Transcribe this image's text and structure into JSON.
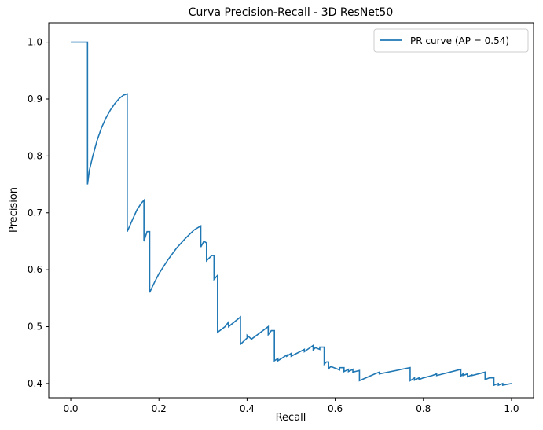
{
  "chart_data": {
    "type": "line",
    "title": "Curva Precision-Recall - 3D ResNet50",
    "xlabel": "Recall",
    "ylabel": "Precision",
    "xlim": [
      -0.05,
      1.05
    ],
    "ylim": [
      0.375,
      1.034
    ],
    "xticks": [
      0.0,
      0.2,
      0.4,
      0.6,
      0.8,
      1.0
    ],
    "xtick_labels": [
      "0.0",
      "0.2",
      "0.4",
      "0.6",
      "0.8",
      "1.0"
    ],
    "yticks": [
      0.4,
      0.5,
      0.6,
      0.7,
      0.8,
      0.9,
      1.0
    ],
    "ytick_labels": [
      "0.4",
      "0.5",
      "0.6",
      "0.7",
      "0.8",
      "0.9",
      "1.0"
    ],
    "grid": false,
    "legend_position": "top-right",
    "series": [
      {
        "name": "PR curve (AP = 0.54)",
        "color": "#1f77b4",
        "x": [
          0.0,
          0.038,
          0.038,
          0.042,
          0.05,
          0.06,
          0.07,
          0.08,
          0.09,
          0.1,
          0.11,
          0.12,
          0.128,
          0.128,
          0.14,
          0.15,
          0.16,
          0.166,
          0.166,
          0.173,
          0.173,
          0.179,
          0.179,
          0.19,
          0.2,
          0.22,
          0.24,
          0.26,
          0.28,
          0.295,
          0.295,
          0.302,
          0.302,
          0.308,
          0.308,
          0.32,
          0.32,
          0.325,
          0.325,
          0.333,
          0.333,
          0.35,
          0.358,
          0.358,
          0.385,
          0.385,
          0.4,
          0.4,
          0.41,
          0.448,
          0.448,
          0.455,
          0.455,
          0.462,
          0.462,
          0.47,
          0.47,
          0.49,
          0.49,
          0.5,
          0.5,
          0.51,
          0.53,
          0.53,
          0.55,
          0.55,
          0.555,
          0.565,
          0.565,
          0.575,
          0.575,
          0.58,
          0.585,
          0.585,
          0.59,
          0.59,
          0.6,
          0.6,
          0.61,
          0.61,
          0.62,
          0.62,
          0.63,
          0.63,
          0.64,
          0.64,
          0.655,
          0.655,
          0.69,
          0.69,
          0.7,
          0.7,
          0.77,
          0.77,
          0.78,
          0.78,
          0.79,
          0.79,
          0.8,
          0.8,
          0.82,
          0.82,
          0.83,
          0.83,
          0.885,
          0.885,
          0.89,
          0.89,
          0.9,
          0.9,
          0.91,
          0.91,
          0.94,
          0.94,
          0.95,
          0.95,
          0.96,
          0.96,
          0.97,
          0.97,
          0.98,
          0.98,
          1.0
        ],
        "y": [
          1.0,
          1.0,
          0.75,
          0.774,
          0.8,
          0.828,
          0.85,
          0.867,
          0.881,
          0.892,
          0.901,
          0.907,
          0.909,
          0.667,
          0.688,
          0.705,
          0.717,
          0.722,
          0.65,
          0.667,
          0.667,
          0.667,
          0.56,
          0.578,
          0.593,
          0.617,
          0.638,
          0.655,
          0.67,
          0.677,
          0.64,
          0.65,
          0.65,
          0.647,
          0.616,
          0.625,
          0.625,
          0.625,
          0.583,
          0.59,
          0.49,
          0.5,
          0.508,
          0.5,
          0.517,
          0.469,
          0.48,
          0.485,
          0.478,
          0.5,
          0.486,
          0.493,
          0.493,
          0.493,
          0.44,
          0.444,
          0.44,
          0.45,
          0.448,
          0.453,
          0.448,
          0.452,
          0.46,
          0.456,
          0.467,
          0.459,
          0.463,
          0.46,
          0.464,
          0.464,
          0.434,
          0.438,
          0.438,
          0.426,
          0.43,
          0.43,
          0.427,
          0.427,
          0.424,
          0.428,
          0.428,
          0.421,
          0.425,
          0.421,
          0.425,
          0.42,
          0.423,
          0.405,
          0.417,
          0.417,
          0.42,
          0.417,
          0.428,
          0.405,
          0.41,
          0.406,
          0.41,
          0.407,
          0.41,
          0.41,
          0.414,
          0.414,
          0.417,
          0.414,
          0.425,
          0.413,
          0.417,
          0.414,
          0.417,
          0.412,
          0.415,
          0.414,
          0.42,
          0.407,
          0.41,
          0.41,
          0.41,
          0.397,
          0.4,
          0.397,
          0.4,
          0.397,
          0.4
        ]
      }
    ]
  }
}
